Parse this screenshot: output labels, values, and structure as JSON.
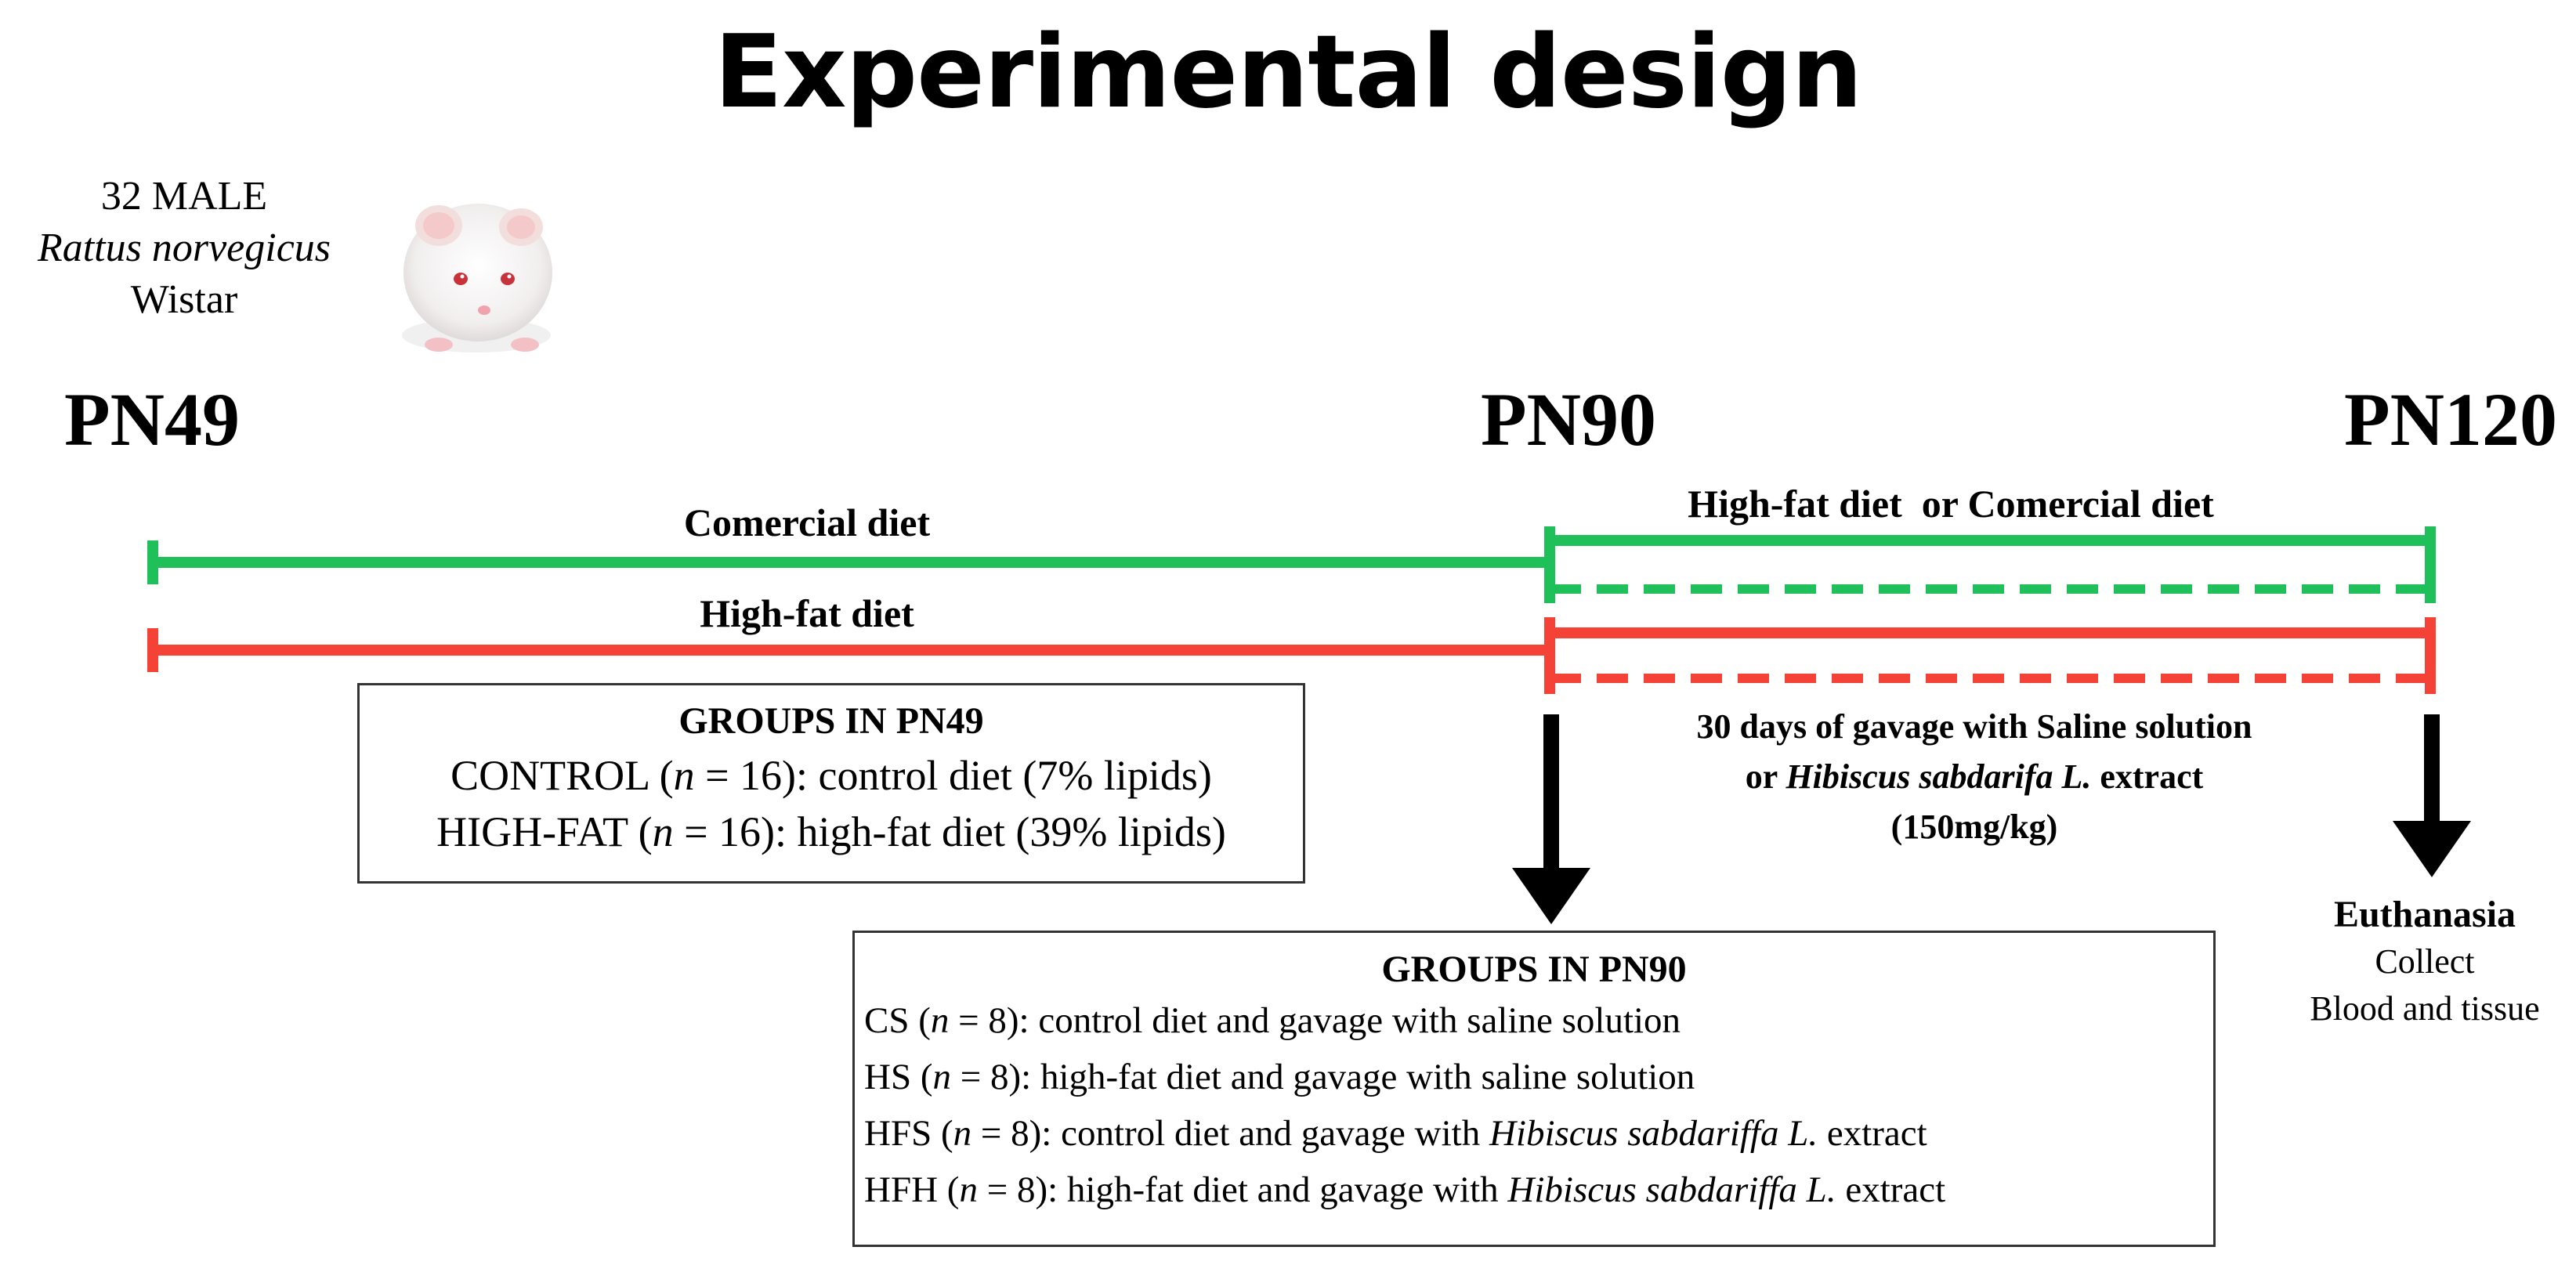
{
  "title": "Experimental design",
  "subject": {
    "line1": "32 MALE",
    "species": "Rattus norvegicus",
    "strain": "Wistar"
  },
  "timepoints": [
    "PN49",
    "PN90",
    "PN120"
  ],
  "phases": {
    "commercial_label": "Comercial diet",
    "highfat_label": "High-fat diet",
    "second_phase_label": "High-fat diet  or Comercial diet"
  },
  "colors": {
    "commercial_line": "#1fbf5a",
    "highfat_line": "#f44336",
    "arrow": "#000000"
  },
  "groups_pn49": {
    "heading": "GROUPS IN PN49",
    "rows": [
      {
        "name": "CONTROL (",
        "n": "n",
        "rest": " = 16): control diet (7% lipids)"
      },
      {
        "name": "HIGH-FAT (",
        "n": "n",
        "rest": " = 16): high-fat diet (39% lipids)"
      }
    ]
  },
  "gavage": {
    "line1": "30 days of gavage with Saline solution",
    "line2_prefix": "or ",
    "line2_italic": "Hibiscus sabdarifa L.",
    "line2_suffix": " extract",
    "line3": "(150mg/kg)"
  },
  "groups_pn90": {
    "heading": "GROUPS IN PN90",
    "rows": [
      {
        "name": "CS (",
        "n": "n",
        "rest": " = 8): control diet and gavage with saline solution",
        "italic": "",
        "tail": ""
      },
      {
        "name": "HS (",
        "n": "n",
        "rest": " = 8): high-fat diet and gavage with saline solution",
        "italic": "",
        "tail": ""
      },
      {
        "name": "HFS (",
        "n": "n",
        "rest": " = 8): control diet and gavage with ",
        "italic": "Hibiscus sabdariffa L.",
        "tail": " extract"
      },
      {
        "name": "HFH (",
        "n": "n",
        "rest": " = 8): high-fat diet and gavage with ",
        "italic": "Hibiscus sabdariffa L.",
        "tail": " extract"
      }
    ]
  },
  "endpoint": {
    "title": "Euthanasia",
    "line1": "Collect",
    "line2": "Blood and tissue"
  }
}
